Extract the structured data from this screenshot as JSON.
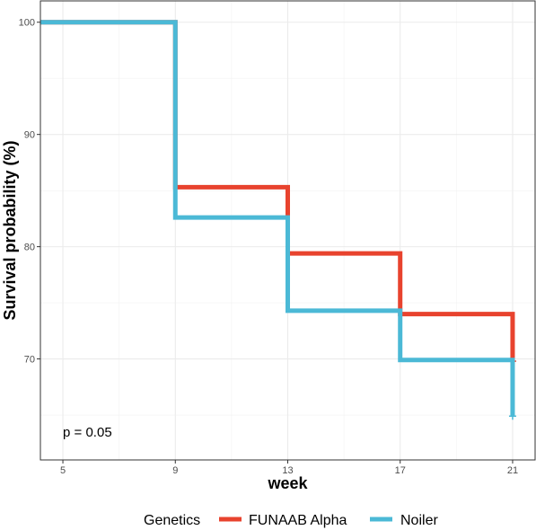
{
  "chart_data": {
    "type": "line",
    "step": true,
    "xlabel": "week",
    "ylabel": "Survival probability (%)",
    "x_ticks": [
      5,
      9,
      13,
      17,
      21
    ],
    "y_ticks": [
      70,
      80,
      90,
      100
    ],
    "xlim": [
      4.2,
      21.8
    ],
    "ylim": [
      61,
      101.9
    ],
    "grid": true,
    "annotation": {
      "text": "p = 0.05",
      "x": 5,
      "y": 63.5
    },
    "legend": {
      "title": "Genetics",
      "position": "bottom"
    },
    "series": [
      {
        "name": "FUNAAB Alpha",
        "color": "#E8432E",
        "x": [
          4.2,
          9,
          13,
          17,
          21
        ],
        "y": [
          100,
          85.3,
          79.4,
          74.0,
          69.8
        ],
        "censor": {
          "x": 21,
          "y": 69.8
        }
      },
      {
        "name": "Noiler",
        "color": "#4BB9D6",
        "x": [
          4.2,
          9,
          13,
          17,
          21
        ],
        "y": [
          100,
          82.6,
          74.3,
          69.9,
          64.9
        ],
        "censor": {
          "x": 21,
          "y": 64.9
        }
      }
    ]
  }
}
